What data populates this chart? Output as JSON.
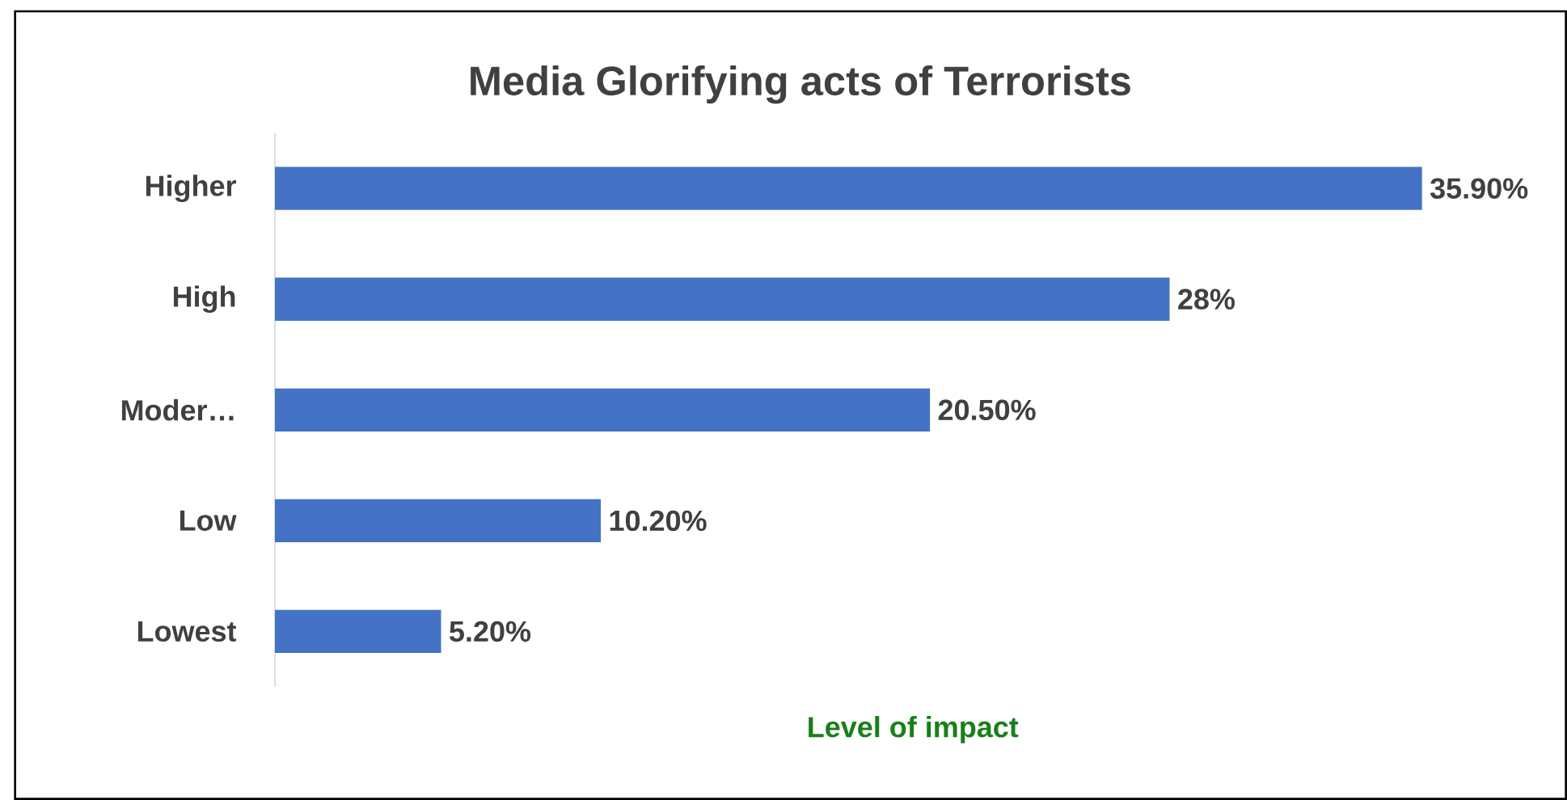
{
  "chart_data": {
    "type": "bar",
    "orientation": "horizontal",
    "title": "Media Glorifying acts of Terrorists",
    "xlabel": "Level of impact",
    "categories": [
      "Higher",
      "High",
      "Moder…",
      "Low",
      "Lowest"
    ],
    "values": [
      35.9,
      28,
      20.5,
      10.2,
      5.2
    ],
    "value_labels": [
      "35.90%",
      "28%",
      "20.50%",
      "10.20%",
      "5.20%"
    ],
    "color": "#4472c4",
    "tick_labels": "y",
    "grid": false
  }
}
